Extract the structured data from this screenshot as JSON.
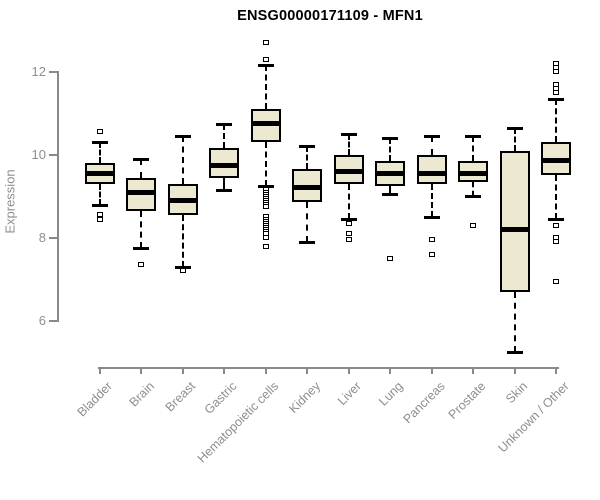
{
  "chart_data": {
    "type": "boxplot",
    "title": "ENSG00000171109 - MFN1",
    "ylabel": "Expression",
    "yticks": [
      6,
      8,
      10,
      12
    ],
    "ylim": [
      5.0,
      12.9
    ],
    "grid": false,
    "legend": "none",
    "categories": [
      "Bladder",
      "Brain",
      "Breast",
      "Gastric",
      "Hematopoietic cells",
      "Kidney",
      "Liver",
      "Lung",
      "Pancreas",
      "Prostate",
      "Skin",
      "Unknown / Other"
    ],
    "boxes": [
      {
        "category": "Bladder",
        "whisker_low": 8.8,
        "q1": 9.3,
        "median": 9.55,
        "q3": 9.8,
        "whisker_high": 10.3,
        "outliers_low": [
          8.55,
          8.45
        ],
        "outliers_high": [
          10.55
        ]
      },
      {
        "category": "Brain",
        "whisker_low": 7.75,
        "q1": 8.65,
        "median": 9.1,
        "q3": 9.45,
        "whisker_high": 9.9,
        "outliers_low": [
          7.35
        ],
        "outliers_high": []
      },
      {
        "category": "Breast",
        "whisker_low": 7.3,
        "q1": 8.55,
        "median": 8.9,
        "q3": 9.3,
        "whisker_high": 10.45,
        "outliers_low": [
          7.2
        ],
        "outliers_high": []
      },
      {
        "category": "Gastric",
        "whisker_low": 9.15,
        "q1": 9.45,
        "median": 9.75,
        "q3": 10.15,
        "whisker_high": 10.75,
        "outliers_low": [],
        "outliers_high": []
      },
      {
        "category": "Hematopoietic cells",
        "whisker_low": 9.25,
        "q1": 10.3,
        "median": 10.75,
        "q3": 11.1,
        "whisker_high": 12.15,
        "outliers_low": [
          9.15,
          9.1,
          9.05,
          9.0,
          8.95,
          8.9,
          8.85,
          8.8,
          8.75,
          8.5,
          8.45,
          8.4,
          8.35,
          8.3,
          8.25,
          8.2,
          8.15,
          8.1,
          8.0,
          7.8
        ],
        "outliers_high": [
          12.7,
          12.3
        ]
      },
      {
        "category": "Kidney",
        "whisker_low": 7.9,
        "q1": 8.85,
        "median": 9.2,
        "q3": 9.65,
        "whisker_high": 10.2,
        "outliers_low": [],
        "outliers_high": []
      },
      {
        "category": "Liver",
        "whisker_low": 8.45,
        "q1": 9.3,
        "median": 9.6,
        "q3": 10.0,
        "whisker_high": 10.5,
        "outliers_low": [
          8.35,
          8.1,
          7.95
        ],
        "outliers_high": []
      },
      {
        "category": "Lung",
        "whisker_low": 9.05,
        "q1": 9.25,
        "median": 9.55,
        "q3": 9.85,
        "whisker_high": 10.4,
        "outliers_low": [
          7.5
        ],
        "outliers_high": []
      },
      {
        "category": "Pancreas",
        "whisker_low": 8.5,
        "q1": 9.3,
        "median": 9.55,
        "q3": 10.0,
        "whisker_high": 10.45,
        "outliers_low": [
          7.95,
          7.6
        ],
        "outliers_high": []
      },
      {
        "category": "Prostate",
        "whisker_low": 9.0,
        "q1": 9.35,
        "median": 9.55,
        "q3": 9.85,
        "whisker_high": 10.45,
        "outliers_low": [
          8.3
        ],
        "outliers_high": []
      },
      {
        "category": "Skin",
        "whisker_low": 5.25,
        "q1": 6.7,
        "median": 8.2,
        "q3": 10.1,
        "whisker_high": 10.65,
        "outliers_low": [],
        "outliers_high": []
      },
      {
        "category": "Unknown / Other",
        "whisker_low": 8.45,
        "q1": 9.5,
        "median": 9.85,
        "q3": 10.3,
        "whisker_high": 11.35,
        "outliers_low": [
          8.3,
          8.0,
          7.9,
          6.95
        ],
        "outliers_high": [
          12.2,
          12.1,
          12.0,
          11.7,
          11.6,
          11.5
        ]
      }
    ],
    "colors": {
      "box_fill": "#ede8d0",
      "box_border": "#000000",
      "median": "#000000",
      "axis": "#898989",
      "tick_label": "#8e8e8e",
      "title": "#000000",
      "background": "#ffffff"
    }
  }
}
